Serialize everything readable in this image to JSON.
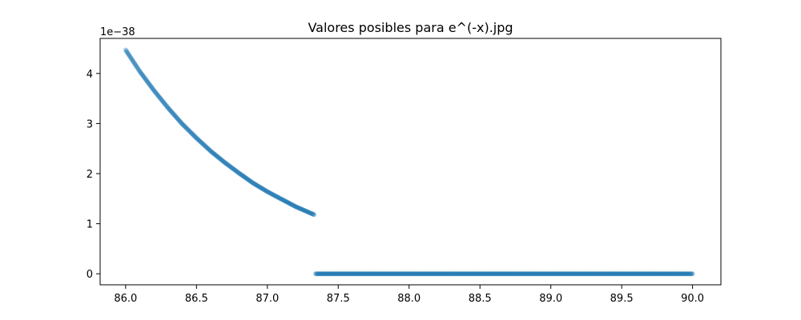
{
  "chart_data": {
    "type": "scatter",
    "title": "Valores posibles para e^(-x).jpg",
    "xlabel": "",
    "ylabel": "",
    "y_offset_text": "1e−38",
    "xlim": [
      85.82,
      90.2
    ],
    "ylim": [
      -0.22,
      4.7
    ],
    "y_scale_exponent": -38,
    "x_ticks": [
      86.0,
      86.5,
      87.0,
      87.5,
      88.0,
      88.5,
      89.0,
      89.5,
      90.0
    ],
    "x_tick_labels": [
      "86.0",
      "86.5",
      "87.0",
      "87.5",
      "88.0",
      "88.5",
      "89.0",
      "89.5",
      "90.0"
    ],
    "y_ticks": [
      0,
      1,
      2,
      3,
      4
    ],
    "y_tick_labels": [
      "0",
      "1",
      "2",
      "3",
      "4"
    ],
    "grid": false,
    "series": [
      {
        "marker_color": "#1f77b4",
        "x": [
          86.0,
          86.1,
          86.2,
          86.3,
          86.4,
          86.5,
          86.6,
          86.7,
          86.8,
          86.9,
          87.0,
          87.1,
          87.2,
          87.33
        ],
        "y": [
          4.47,
          4.04,
          3.66,
          3.31,
          2.99,
          2.71,
          2.45,
          2.22,
          2.01,
          1.81,
          1.64,
          1.49,
          1.34,
          1.18
        ]
      },
      {
        "marker_color": "#1f77b4",
        "x": [
          87.34,
          87.5,
          88.0,
          88.5,
          89.0,
          89.5,
          90.0
        ],
        "y": [
          0,
          0,
          0,
          0,
          0,
          0,
          0
        ]
      }
    ]
  }
}
